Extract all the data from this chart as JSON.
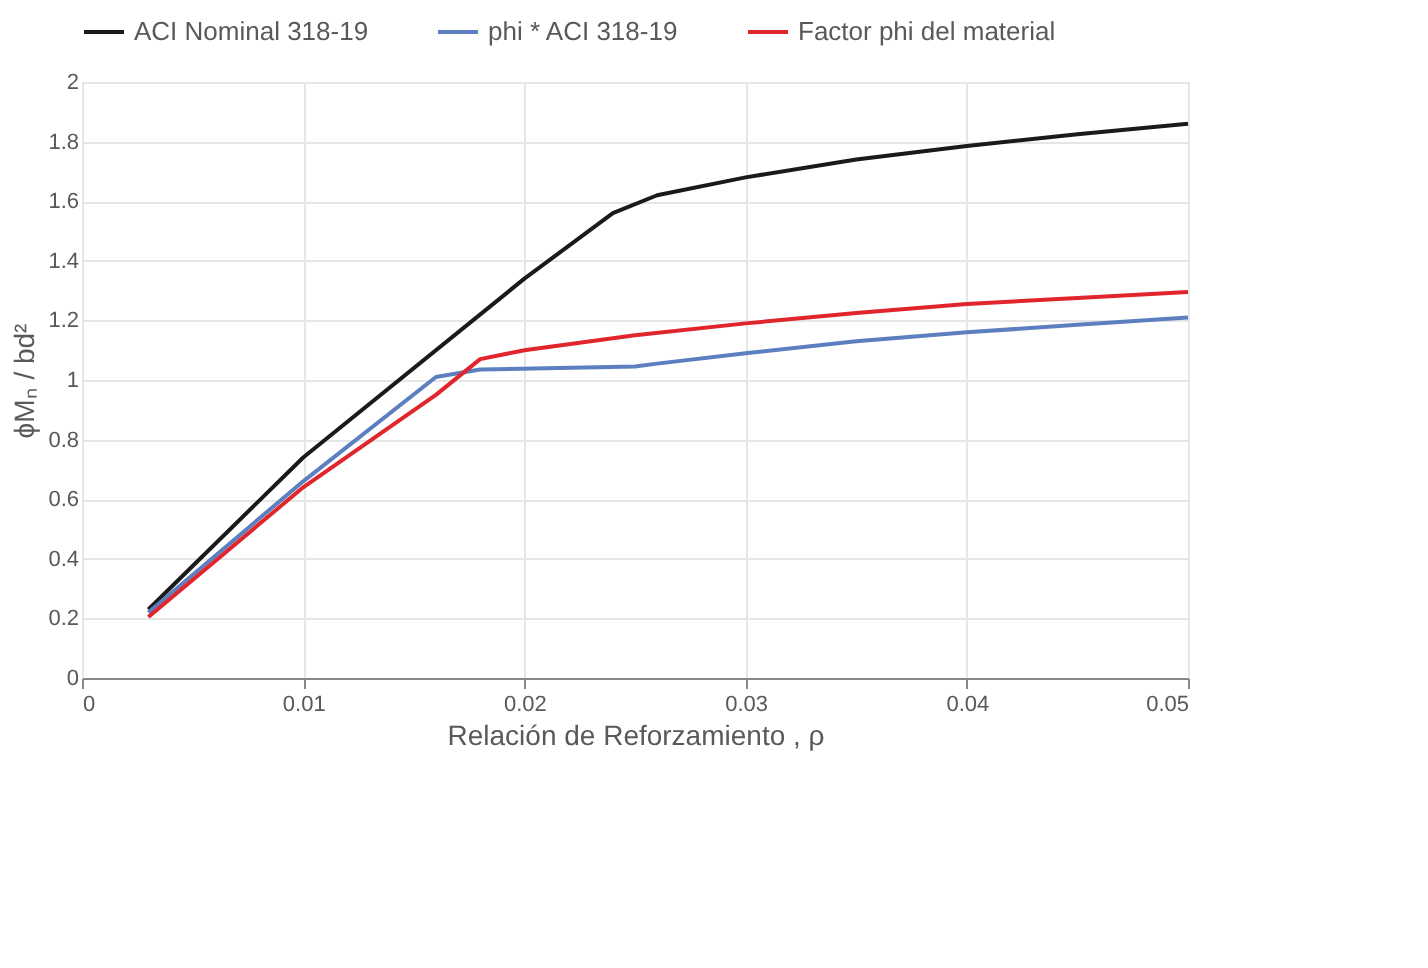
{
  "chart_data": {
    "type": "line",
    "xlabel": "Relación de Reforzamiento , ρ",
    "ylabel": "ϕMₙ / bd²",
    "xlim": [
      0,
      0.05
    ],
    "xticks": [
      0,
      0.01,
      0.02,
      0.03,
      0.04,
      0.05
    ],
    "ylim": [
      0,
      2
    ],
    "yticks": [
      0,
      0.2,
      0.4,
      0.6,
      0.8,
      1,
      1.2,
      1.4,
      1.6,
      1.8,
      2
    ],
    "grid": true,
    "legend": "top",
    "marker": "none",
    "line_style": "solid",
    "series": [
      {
        "name": "ACI Nominal 318-19",
        "color": "#1a1a1a",
        "x": [
          0.003,
          0.01,
          0.02,
          0.024,
          0.026,
          0.03,
          0.035,
          0.04,
          0.045,
          0.05
        ],
        "values": [
          0.23,
          0.74,
          1.34,
          1.56,
          1.62,
          1.68,
          1.74,
          1.785,
          1.825,
          1.86
        ]
      },
      {
        "name": "phi * ACI 318-19",
        "color": "#5b7fbf",
        "x": [
          0.003,
          0.01,
          0.016,
          0.018,
          0.025,
          0.026,
          0.03,
          0.035,
          0.04,
          0.045,
          0.05
        ],
        "values": [
          0.22,
          0.66,
          1.01,
          1.035,
          1.045,
          1.055,
          1.09,
          1.13,
          1.16,
          1.185,
          1.21
        ]
      },
      {
        "name": "Factor phi del material",
        "color": "#e0262c",
        "x": [
          0.003,
          0.01,
          0.016,
          0.018,
          0.02,
          0.025,
          0.03,
          0.035,
          0.04,
          0.045,
          0.05
        ],
        "values": [
          0.205,
          0.64,
          0.95,
          1.07,
          1.1,
          1.15,
          1.19,
          1.225,
          1.255,
          1.275,
          1.295
        ]
      }
    ]
  }
}
